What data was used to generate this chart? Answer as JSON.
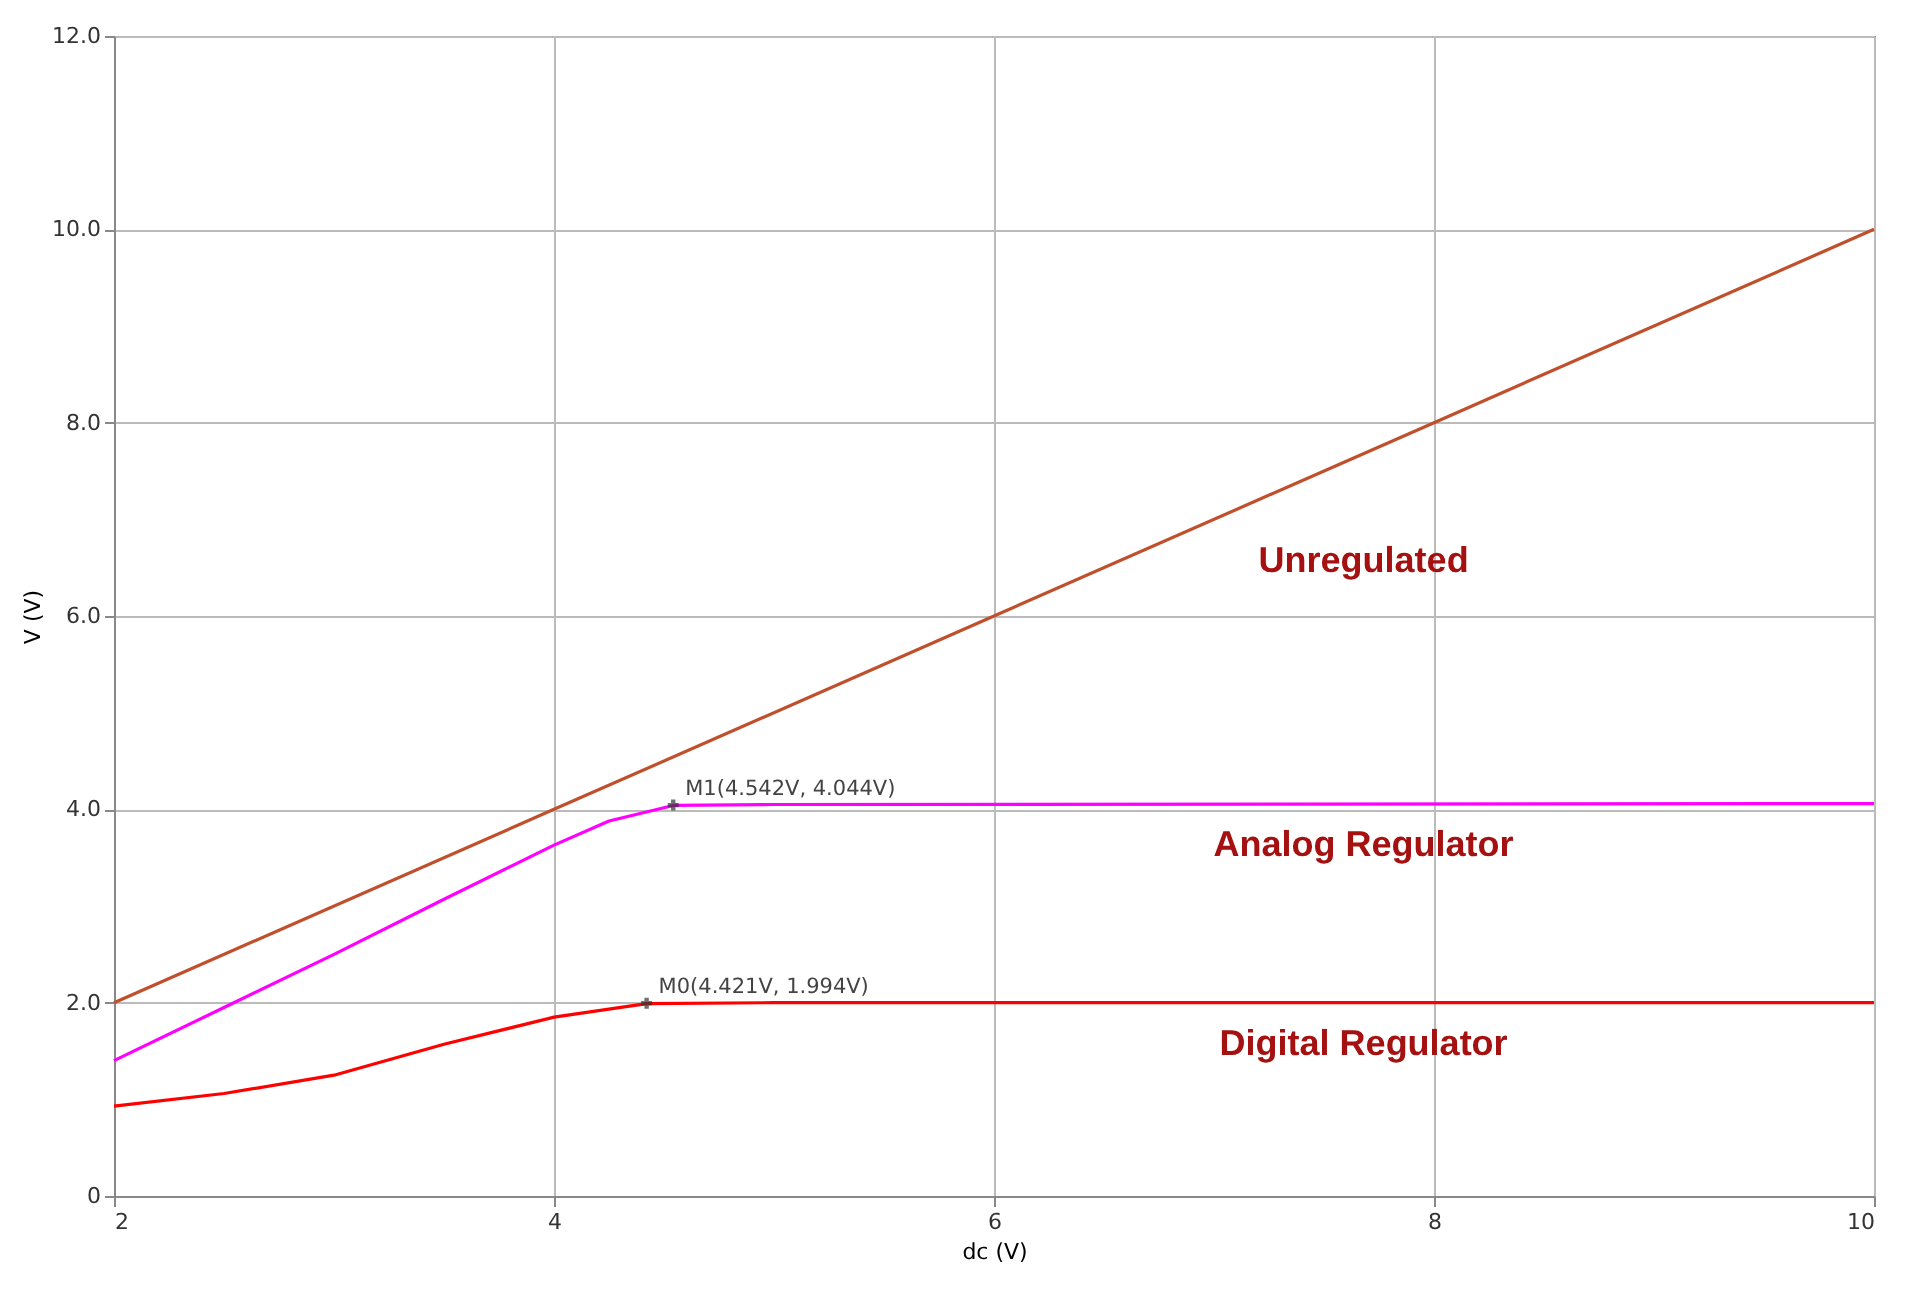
{
  "chart_data": {
    "type": "line",
    "xlabel": "dc (V)",
    "ylabel": "V (V)",
    "xlim": [
      2,
      10
    ],
    "xticks": [
      2,
      4,
      6,
      8,
      10
    ],
    "ylim": [
      0,
      12
    ],
    "yticks": [
      0,
      {
        "value": 2,
        "label": "2.0"
      },
      {
        "value": 4,
        "label": "4.0"
      },
      {
        "value": 6,
        "label": "6.0"
      },
      {
        "value": 8,
        "label": "8.0"
      },
      {
        "value": 10,
        "label": "10.0"
      },
      {
        "value": 12,
        "label": "12.0"
      }
    ],
    "grid": true,
    "legend": false,
    "marker": "none",
    "line_style": "solid",
    "series": [
      {
        "name": "Unregulated",
        "color": "#c0502c",
        "x": [
          2,
          4,
          6,
          8,
          10
        ],
        "values": [
          2,
          4,
          6,
          8,
          10
        ]
      },
      {
        "name": "Analog Regulator",
        "color": "#ff00ff",
        "x": [
          2,
          2.5,
          3,
          3.5,
          4,
          4.25,
          4.542,
          5,
          10
        ],
        "values": [
          1.4,
          1.95,
          2.5,
          3.07,
          3.63,
          3.88,
          4.04,
          4.05,
          4.06
        ]
      },
      {
        "name": "Digital Regulator",
        "color": "#ff0000",
        "x": [
          2,
          2.5,
          3,
          3.5,
          4,
          4.421,
          5,
          10
        ],
        "values": [
          0.93,
          1.06,
          1.25,
          1.57,
          1.85,
          1.99,
          2.0,
          2.0
        ]
      }
    ],
    "annotations": [
      {
        "text": "M1(4.542V, 4.044V)",
        "x": 4.542,
        "y": 4.044
      },
      {
        "text": "M0(4.421V, 1.994V)",
        "x": 4.421,
        "y": 1.994
      }
    ]
  }
}
